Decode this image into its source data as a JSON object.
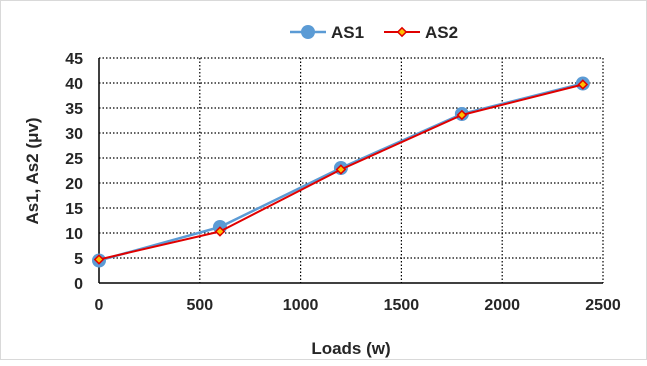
{
  "chart_data": {
    "type": "line",
    "title": "",
    "xlabel": "Loads (w)",
    "ylabel": "As1, As2 (μv)",
    "x": [
      0,
      600,
      1200,
      1800,
      2400
    ],
    "xlim": [
      0,
      2500
    ],
    "ylim": [
      0,
      45
    ],
    "xticks": [
      0,
      500,
      1000,
      1500,
      2000,
      2500
    ],
    "yticks": [
      0,
      5,
      10,
      15,
      20,
      25,
      30,
      35,
      40,
      45
    ],
    "grid": true,
    "legend": "top-center",
    "series": [
      {
        "name": "AS1",
        "color": "#5B9BD5",
        "marker": "circle",
        "values": [
          4.5,
          11.2,
          23.0,
          33.8,
          39.9
        ]
      },
      {
        "name": "AS2",
        "color": "#E00000",
        "marker": "diamond",
        "values": [
          4.7,
          10.3,
          22.7,
          33.6,
          39.7
        ]
      }
    ]
  }
}
